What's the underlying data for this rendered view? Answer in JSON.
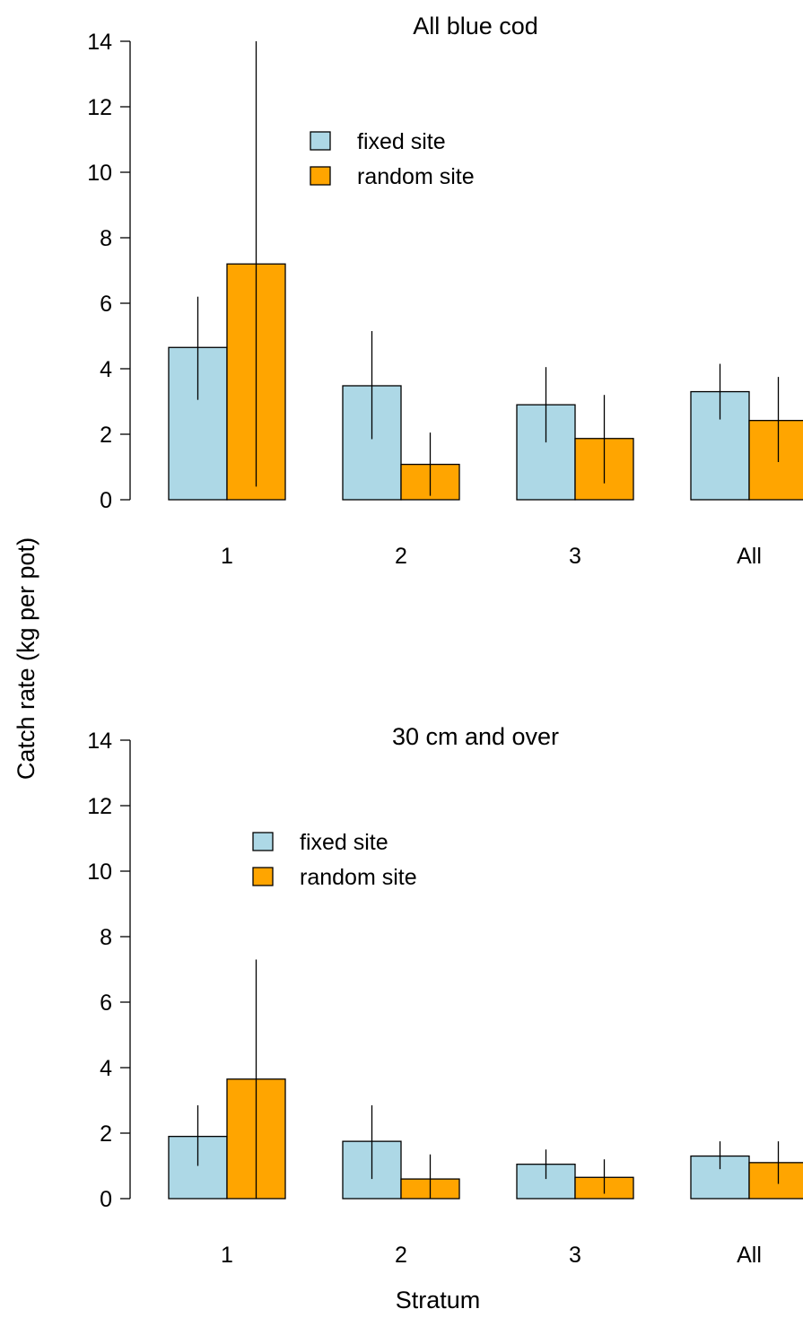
{
  "figure": {
    "ylabel": "Catch rate (kg per pot)",
    "xlabel": "Stratum"
  },
  "colors": {
    "fixed": "#add8e6",
    "random": "#ffa500",
    "stroke": "#000000"
  },
  "chart_data": [
    {
      "type": "bar",
      "title": "All blue cod",
      "categories": [
        "1",
        "2",
        "3",
        "All"
      ],
      "ylim": [
        0,
        14
      ],
      "yticks": [
        0,
        2,
        4,
        6,
        8,
        10,
        12,
        14
      ],
      "grid": false,
      "legend": "top-center",
      "series": [
        {
          "name": "fixed site",
          "values": [
            4.65,
            3.48,
            2.9,
            3.3
          ],
          "lower": [
            3.05,
            1.85,
            1.75,
            2.45
          ],
          "upper": [
            6.2,
            5.15,
            4.05,
            4.15
          ]
        },
        {
          "name": "random site",
          "values": [
            7.2,
            1.08,
            1.87,
            2.42
          ],
          "lower": [
            0.4,
            0.12,
            0.5,
            1.15
          ],
          "upper": [
            14.0,
            2.05,
            3.2,
            3.75
          ]
        }
      ]
    },
    {
      "type": "bar",
      "title": "30 cm and over",
      "categories": [
        "1",
        "2",
        "3",
        "All"
      ],
      "ylim": [
        0,
        14
      ],
      "yticks": [
        0,
        2,
        4,
        6,
        8,
        10,
        12,
        14
      ],
      "grid": false,
      "legend": "top-left",
      "series": [
        {
          "name": "fixed site",
          "values": [
            1.9,
            1.75,
            1.05,
            1.3
          ],
          "lower": [
            1.0,
            0.6,
            0.6,
            0.9
          ],
          "upper": [
            2.85,
            2.85,
            1.5,
            1.75
          ]
        },
        {
          "name": "random site",
          "values": [
            3.65,
            0.6,
            0.65,
            1.1
          ],
          "lower": [
            0.0,
            0.0,
            0.15,
            0.45
          ],
          "upper": [
            7.3,
            1.35,
            1.2,
            1.75
          ]
        }
      ]
    }
  ]
}
